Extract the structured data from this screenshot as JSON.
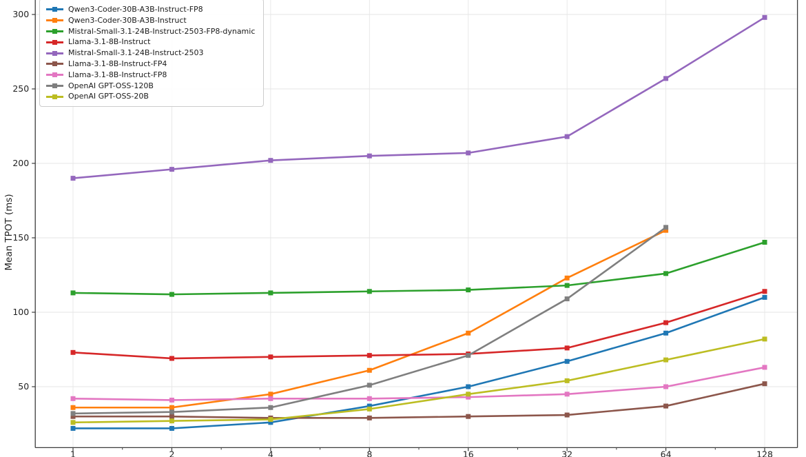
{
  "figure": {
    "ylabel": "Mean TPOT (ms)",
    "background": "#ffffff",
    "grid_color": "#e6e6e6",
    "spine_color": "#3b3b3b",
    "tick_text_color": "#1f1f1f"
  },
  "chart_data": {
    "type": "line",
    "title": "",
    "xlabel": "",
    "ylabel": "Mean TPOT (ms)",
    "x_scale": "log2",
    "x": [
      1,
      2,
      4,
      8,
      16,
      32,
      64,
      128
    ],
    "x_tick_labels": [
      "1",
      "2",
      "4",
      "8",
      "16",
      "32",
      "64",
      "128"
    ],
    "y_ticks": [
      50,
      100,
      150,
      200,
      250,
      300
    ],
    "y_tick_labels": [
      "50",
      "100",
      "150",
      "200",
      "250",
      "300"
    ],
    "ylim_visible": [
      9,
      310
    ],
    "grid": true,
    "legend_position": "upper-left",
    "marker": "square",
    "series": [
      {
        "name": "Qwen3-Coder-30B-A3B-Instruct-FP8",
        "color": "#1f77b4",
        "values": [
          22,
          22,
          26,
          37,
          50,
          67,
          86,
          110
        ]
      },
      {
        "name": "Qwen3-Coder-30B-A3B-Instruct",
        "color": "#ff7f0e",
        "values": [
          36,
          36,
          45,
          61,
          86,
          123,
          155,
          null
        ]
      },
      {
        "name": "Mistral-Small-3.1-24B-Instruct-2503-FP8-dynamic",
        "color": "#2ca02c",
        "values": [
          113,
          112,
          113,
          114,
          115,
          118,
          126,
          147
        ]
      },
      {
        "name": "Llama-3.1-8B-Instruct",
        "color": "#d62728",
        "values": [
          73,
          69,
          70,
          71,
          72,
          76,
          93,
          114
        ]
      },
      {
        "name": "Mistral-Small-3.1-24B-Instruct-2503",
        "color": "#9467bd",
        "values": [
          190,
          196,
          202,
          205,
          207,
          218,
          257,
          298
        ]
      },
      {
        "name": "Llama-3.1-8B-Instruct-FP4",
        "color": "#8c564b",
        "values": [
          30,
          30,
          29,
          29,
          30,
          31,
          37,
          52
        ]
      },
      {
        "name": "Llama-3.1-8B-Instruct-FP8",
        "color": "#e377c2",
        "values": [
          42,
          41,
          42,
          42,
          43,
          45,
          50,
          63
        ]
      },
      {
        "name": "OpenAI GPT-OSS-120B",
        "color": "#7f7f7f",
        "values": [
          32,
          33,
          36,
          51,
          71,
          109,
          157,
          null
        ]
      },
      {
        "name": "OpenAI GPT-OSS-20B",
        "color": "#bcbd22",
        "values": [
          26,
          27,
          28,
          35,
          45,
          54,
          68,
          82
        ]
      }
    ]
  }
}
